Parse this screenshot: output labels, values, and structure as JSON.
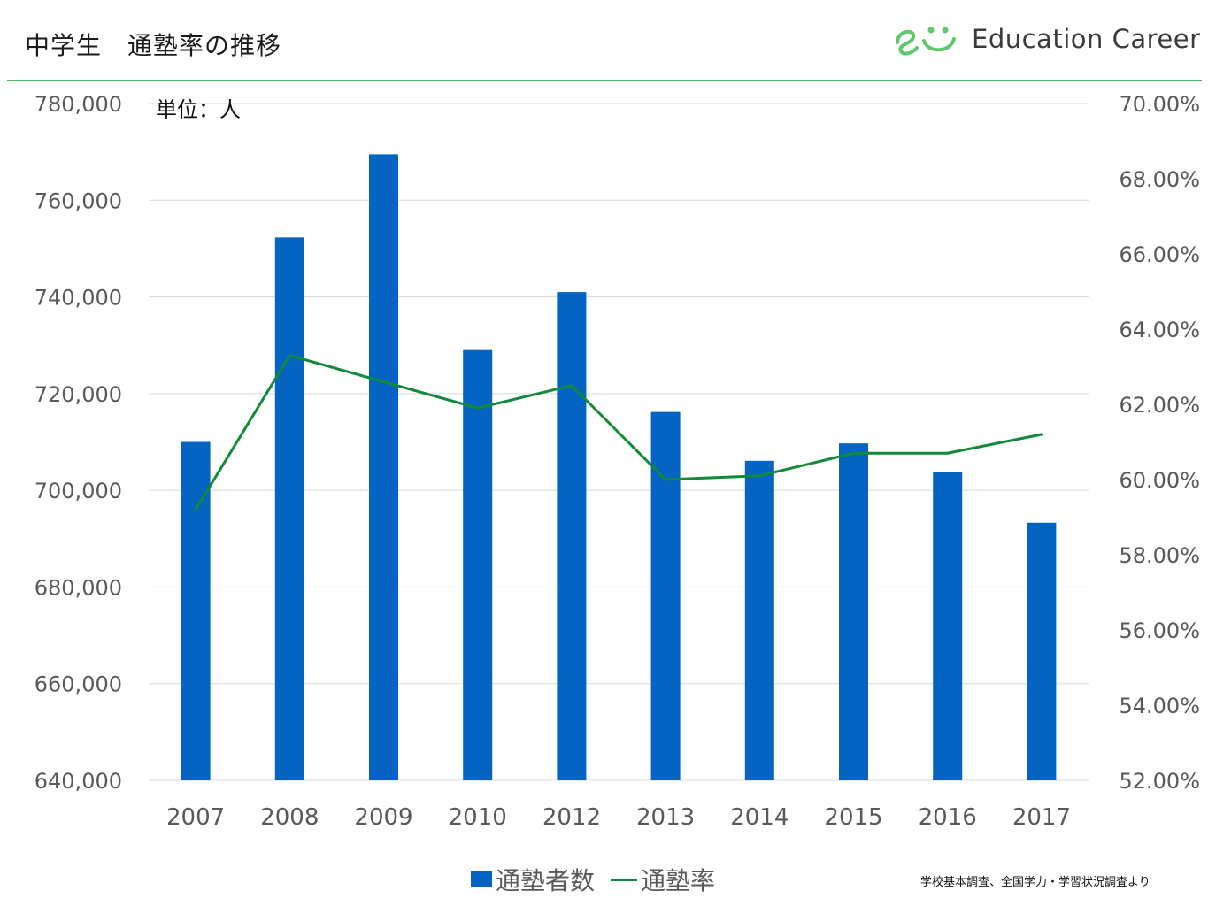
{
  "header": {
    "title": "中学生　通塾率の推移",
    "logo_text": "Education Career"
  },
  "unit_label": "単位：人",
  "legend": {
    "bar_label": "通塾者数",
    "line_label": "通塾率"
  },
  "source_note": "学校基本調査、全国学力・学習状況調査より",
  "colors": {
    "bar": "#0563c1",
    "line": "#13893a",
    "rule": "#4bb56a",
    "grid": "#d9d9d9"
  },
  "chart_data": {
    "type": "bar",
    "categories": [
      "2007",
      "2008",
      "2009",
      "2010",
      "2012",
      "2013",
      "2014",
      "2015",
      "2016",
      "2017"
    ],
    "series": [
      {
        "name": "通塾者数",
        "type": "bar",
        "axis": "left",
        "values": [
          710000,
          752300,
          769500,
          729000,
          741000,
          716200,
          706100,
          709700,
          703800,
          693300
        ]
      },
      {
        "name": "通塾率",
        "type": "line",
        "axis": "right",
        "values": [
          59.2,
          63.3,
          62.6,
          61.9,
          62.5,
          60.0,
          60.1,
          60.7,
          60.7,
          61.2
        ]
      }
    ],
    "left_axis": {
      "ylim": [
        640000,
        780000
      ],
      "ticks": [
        "640,000",
        "660,000",
        "680,000",
        "700,000",
        "720,000",
        "740,000",
        "760,000",
        "780,000"
      ]
    },
    "right_axis": {
      "ylim": [
        52,
        70
      ],
      "ticks": [
        "52.00%",
        "54.00%",
        "56.00%",
        "58.00%",
        "60.00%",
        "62.00%",
        "64.00%",
        "66.00%",
        "68.00%",
        "70.00%"
      ]
    },
    "grid": true,
    "legend_position": "bottom"
  }
}
